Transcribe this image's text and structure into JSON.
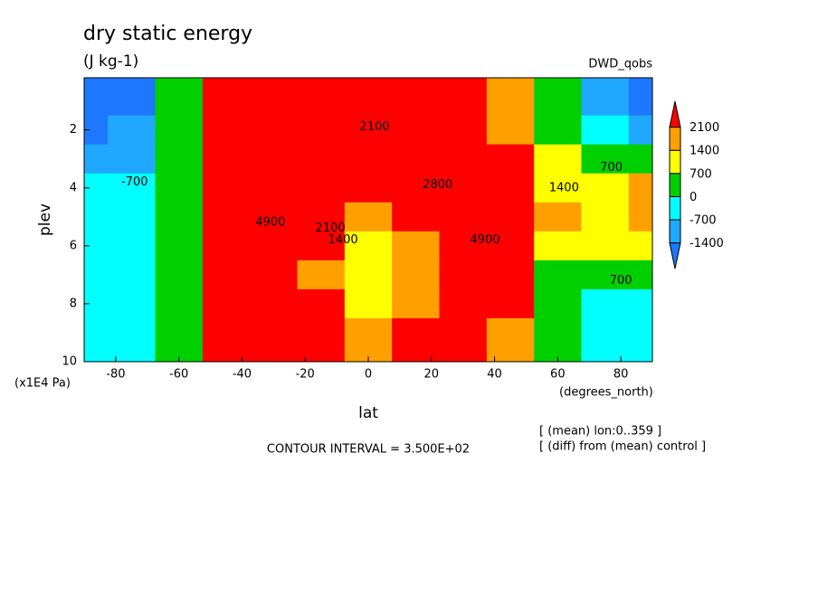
{
  "chart_data": {
    "type": "contour",
    "title": "dry static energy",
    "subtitle": "(J kg-1)",
    "label_right": "DWD_qobs",
    "ylabel": "plev",
    "ylabel_units": "(x1E4 Pa)",
    "xlabel": "lat",
    "xlabel_units": "(degrees_north)",
    "footer": "CONTOUR INTERVAL = 3.500E+02",
    "notes": [
      "[ (mean) lon:0..359 ]",
      "[ (diff) from (mean) control ]"
    ],
    "xlim": [
      -90,
      90
    ],
    "xticks": [
      -80,
      -60,
      -40,
      -20,
      0,
      20,
      40,
      60,
      80
    ],
    "ylim": [
      0.2,
      10
    ],
    "y_inverted": true,
    "yticks": [
      2,
      4,
      6,
      8,
      10
    ],
    "x": [
      -90,
      -75,
      -60,
      -45,
      -30,
      -15,
      0,
      15,
      30,
      45,
      60,
      75,
      90
    ],
    "y": [
      1,
      2,
      3,
      4,
      5,
      6,
      7,
      8,
      9,
      10
    ],
    "z": [
      [
        -1600,
        -1500,
        400,
        2200,
        2300,
        2300,
        2400,
        2300,
        2300,
        1600,
        300,
        -800,
        -1500
      ],
      [
        -1500,
        -1200,
        300,
        2500,
        3000,
        2600,
        2200,
        2500,
        2800,
        2000,
        200,
        -500,
        -900
      ],
      [
        -1000,
        -800,
        400,
        2600,
        3800,
        2800,
        2300,
        2800,
        3600,
        2400,
        800,
        400,
        200
      ],
      [
        -600,
        -700,
        0,
        2700,
        4800,
        3000,
        2300,
        3000,
        4800,
        2500,
        1200,
        900,
        1500
      ],
      [
        -400,
        -500,
        200,
        2800,
        4900,
        2400,
        1600,
        2200,
        4900,
        2600,
        1400,
        1000,
        1500
      ],
      [
        -500,
        -400,
        400,
        2700,
        4500,
        2100,
        1000,
        1500,
        4500,
        2600,
        1000,
        800,
        900
      ],
      [
        -500,
        -400,
        500,
        2600,
        3800,
        1400,
        900,
        1600,
        3800,
        2400,
        500,
        200,
        100
      ],
      [
        -500,
        -400,
        500,
        2500,
        3300,
        2200,
        1200,
        2000,
        3200,
        2200,
        300,
        -200,
        -300
      ],
      [
        -400,
        -400,
        600,
        2400,
        2800,
        2200,
        1600,
        2200,
        2800,
        2000,
        200,
        -300,
        -500
      ],
      [
        -400,
        -400,
        500,
        2300,
        2500,
        2200,
        1500,
        2200,
        2500,
        1800,
        300,
        -300,
        -500
      ]
    ],
    "levels": [
      -1400,
      -700,
      0,
      700,
      1400,
      2100
    ],
    "colors": [
      "#1e78ff",
      "#20a8ff",
      "#00ffff",
      "#00d000",
      "#ffff00",
      "#ffa000",
      "#ff0000"
    ],
    "contour_labels": [
      {
        "label": "2100",
        "x": 2,
        "y": 1.9
      },
      {
        "label": "-700",
        "x": -74,
        "y": 3.8
      },
      {
        "label": "4900",
        "x": -31,
        "y": 5.2
      },
      {
        "label": "4900",
        "x": 37,
        "y": 5.8
      },
      {
        "label": "2800",
        "x": 22,
        "y": 3.9
      },
      {
        "label": "1400",
        "x": 62,
        "y": 4.0
      },
      {
        "label": "700",
        "x": 77,
        "y": 3.3
      },
      {
        "label": "700",
        "x": 80,
        "y": 7.2
      },
      {
        "label": "2100",
        "x": -12,
        "y": 5.4
      },
      {
        "label": "1400",
        "x": -8,
        "y": 5.8
      }
    ]
  }
}
